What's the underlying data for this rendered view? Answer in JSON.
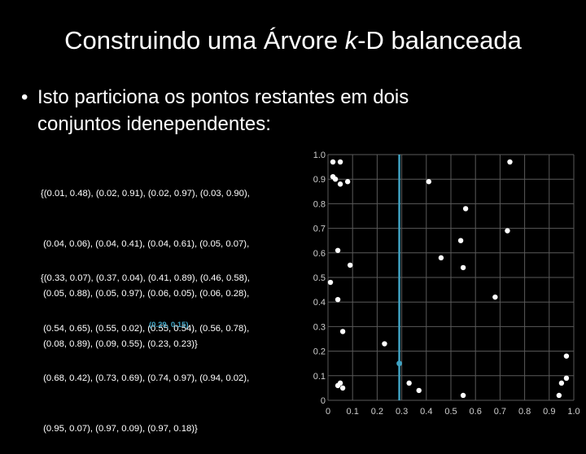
{
  "slide": {
    "title_pre": "Construindo uma Árvore ",
    "title_k": "k",
    "title_post": "-D balanceada",
    "bullet_dot": "•",
    "bullet_line1": "Isto particiona os pontos restantes em dois",
    "bullet_line2": "conjuntos idenependentes:",
    "set1_lines": [
      "{(0.01, 0.48), (0.02, 0.91), (0.02, 0.97), (0.03, 0.90),",
      " (0.04, 0.06), (0.04, 0.41), (0.04, 0.61), (0.05, 0.07),",
      " (0.05, 0.88), (0.05, 0.97), (0.06, 0.05), (0.06, 0.28),",
      " (0.08, 0.89), (0.09, 0.55), (0.23, 0.23)}"
    ],
    "set2_lines": [
      "{(0.33, 0.07), (0.37, 0.04), (0.41, 0.89), (0.46, 0.58),",
      " (0.54, 0.65), (0.55, 0.02), (0.55, 0.54), (0.56, 0.78),",
      " (0.68, 0.42), (0.73, 0.69), (0.74, 0.97), (0.94, 0.02),",
      " (0.95, 0.07), (0.97, 0.09), (0.97, 0.18)}"
    ],
    "median_label": "(0.29, 0.15)"
  },
  "chart_data": {
    "type": "scatter",
    "xlim": [
      0,
      1
    ],
    "ylim": [
      0,
      1
    ],
    "grid": true,
    "x_ticks": [
      "0",
      "0.1",
      "0.2",
      "0.3",
      "0.4",
      "0.5",
      "0.6",
      "0.7",
      "0.8",
      "0.9",
      "1.0"
    ],
    "y_ticks": [
      "0",
      "0.1",
      "0.2",
      "0.3",
      "0.4",
      "0.5",
      "0.6",
      "0.7",
      "0.8",
      "0.9",
      "1.0"
    ],
    "split_x": 0.29,
    "median_point": {
      "x": 0.29,
      "y": 0.15
    },
    "points": [
      [
        0.01,
        0.48
      ],
      [
        0.02,
        0.91
      ],
      [
        0.02,
        0.97
      ],
      [
        0.03,
        0.9
      ],
      [
        0.04,
        0.06
      ],
      [
        0.04,
        0.41
      ],
      [
        0.04,
        0.61
      ],
      [
        0.05,
        0.07
      ],
      [
        0.05,
        0.88
      ],
      [
        0.05,
        0.97
      ],
      [
        0.06,
        0.05
      ],
      [
        0.06,
        0.28
      ],
      [
        0.08,
        0.89
      ],
      [
        0.09,
        0.55
      ],
      [
        0.23,
        0.23
      ],
      [
        0.33,
        0.07
      ],
      [
        0.37,
        0.04
      ],
      [
        0.41,
        0.89
      ],
      [
        0.46,
        0.58
      ],
      [
        0.54,
        0.65
      ],
      [
        0.55,
        0.02
      ],
      [
        0.55,
        0.54
      ],
      [
        0.56,
        0.78
      ],
      [
        0.68,
        0.42
      ],
      [
        0.73,
        0.69
      ],
      [
        0.74,
        0.97
      ],
      [
        0.94,
        0.02
      ],
      [
        0.95,
        0.07
      ],
      [
        0.97,
        0.09
      ],
      [
        0.97,
        0.18
      ]
    ],
    "colors": {
      "background": "#000000",
      "grid": "#5a5a5a",
      "point": "#ffffff",
      "split_line": "#3fa2c2",
      "median_point": "#3fa2c2",
      "tick_label": "#cfcfcf"
    }
  }
}
